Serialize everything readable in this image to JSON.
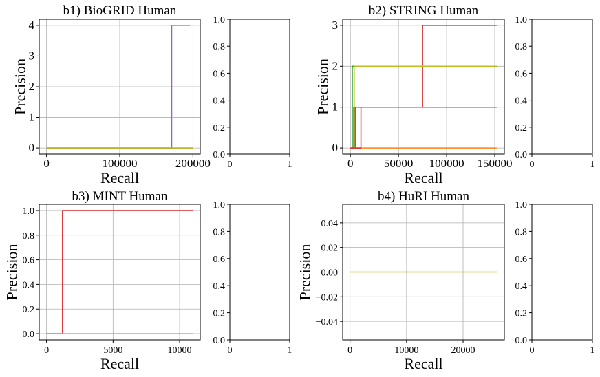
{
  "chart_data": [
    {
      "type": "line",
      "title": "b1) BioGRID Human",
      "xlabel": "Recall",
      "ylabel": "Precision",
      "xlim": [
        -10000,
        210000
      ],
      "ylim": [
        -0.2,
        4.2
      ],
      "xticks": [
        0,
        100000,
        200000
      ],
      "xtick_labels": [
        "0",
        "100000",
        "200000"
      ],
      "yticks": [
        0,
        1,
        2,
        3,
        4
      ],
      "ytick_labels": [
        "0",
        "1",
        "2",
        "3",
        "4"
      ],
      "grid": true,
      "series": [
        {
          "color": "#9467bd",
          "x": [
            0,
            171000,
            171000,
            196000
          ],
          "y": [
            0,
            0,
            4,
            4
          ]
        },
        {
          "color": "#8c564b",
          "x": [
            0,
            200000
          ],
          "y": [
            0,
            0
          ]
        },
        {
          "color": "#bcbd22",
          "x": [
            0,
            200000
          ],
          "y": [
            0,
            0
          ]
        }
      ]
    },
    {
      "type": "line",
      "title": "b2) STRING Human",
      "xlabel": "Recall",
      "ylabel": "Precision",
      "xlim": [
        -8000,
        160000
      ],
      "ylim": [
        -0.15,
        3.15
      ],
      "xticks": [
        0,
        50000,
        100000,
        150000
      ],
      "xtick_labels": [
        "0",
        "50000",
        "100000",
        "150000"
      ],
      "yticks": [
        0,
        1,
        2,
        3
      ],
      "ytick_labels": [
        "0",
        "1",
        "2",
        "3"
      ],
      "grid": true,
      "series": [
        {
          "color": "#ff7f0e",
          "x": [
            0,
            152000
          ],
          "y": [
            0,
            0
          ]
        },
        {
          "color": "#2ca02c",
          "x": [
            2000,
            2000,
            152000
          ],
          "y": [
            0,
            2,
            2
          ]
        },
        {
          "color": "#1f77b4",
          "x": [
            3500,
            3500,
            152000
          ],
          "y": [
            0,
            1,
            1
          ]
        },
        {
          "color": "#d62728",
          "x": [
            0,
            11000,
            11000,
            75000,
            75000,
            152000
          ],
          "y": [
            0,
            0,
            1,
            1,
            3,
            3
          ]
        },
        {
          "color": "#8c564b",
          "x": [
            5000,
            5000,
            152000
          ],
          "y": [
            0,
            1,
            1
          ]
        },
        {
          "color": "#bcbd22",
          "x": [
            4000,
            4000,
            152000
          ],
          "y": [
            0,
            2,
            2
          ]
        }
      ]
    },
    {
      "type": "line",
      "title": "b3) MINT Human",
      "xlabel": "Recall",
      "ylabel": "Precision",
      "xlim": [
        -550,
        11550
      ],
      "ylim": [
        -0.05,
        1.05
      ],
      "xticks": [
        0,
        5000,
        10000
      ],
      "xtick_labels": [
        "0",
        "5000",
        "10000"
      ],
      "yticks": [
        0,
        0.2,
        0.4,
        0.6,
        0.8,
        1.0
      ],
      "ytick_labels": [
        "0.0",
        "0.2",
        "0.4",
        "0.6",
        "0.8",
        "1.0"
      ],
      "grid": true,
      "series": [
        {
          "color": "#d62728",
          "x": [
            0,
            1200,
            1200,
            11000
          ],
          "y": [
            0,
            0,
            1,
            1
          ]
        },
        {
          "color": "#bcbd22",
          "x": [
            0,
            11000
          ],
          "y": [
            0,
            0
          ]
        }
      ]
    },
    {
      "type": "line",
      "title": "b4) HuRI Human",
      "xlabel": "Recall",
      "ylabel": "Precision",
      "xlim": [
        -1300,
        27300
      ],
      "ylim": [
        -0.055,
        0.055
      ],
      "xticks": [
        0,
        10000,
        20000
      ],
      "xtick_labels": [
        "0",
        "10000",
        "20000"
      ],
      "yticks": [
        -0.04,
        -0.02,
        0,
        0.02,
        0.04
      ],
      "ytick_labels": [
        "−0.04",
        "−0.02",
        "0.00",
        "0.02",
        "0.04"
      ],
      "grid": true,
      "series": [
        {
          "color": "#bcbd22",
          "x": [
            0,
            26000
          ],
          "y": [
            0,
            0
          ]
        }
      ]
    },
    {
      "type": "line",
      "title": "",
      "xlim": [
        0,
        1
      ],
      "ylim": [
        0,
        1
      ],
      "xticks": [
        0,
        1
      ],
      "xtick_labels": [
        "0",
        "1"
      ],
      "yticks": [
        0,
        0.2,
        0.4,
        0.6,
        0.8,
        1.0
      ],
      "ytick_labels": [
        "0.0",
        "0.2",
        "0.4",
        "0.6",
        "0.8",
        "1.0"
      ],
      "grid": false,
      "series": []
    },
    {
      "type": "line",
      "title": "",
      "xlim": [
        0,
        1
      ],
      "ylim": [
        0,
        1
      ],
      "xticks": [
        0,
        1
      ],
      "xtick_labels": [
        "0",
        "1"
      ],
      "yticks": [
        0,
        0.2,
        0.4,
        0.6,
        0.8,
        1.0
      ],
      "ytick_labels": [
        "0.0",
        "0.2",
        "0.4",
        "0.6",
        "0.8",
        "1.0"
      ],
      "grid": false,
      "series": []
    },
    {
      "type": "line",
      "title": "",
      "xlim": [
        0,
        1
      ],
      "ylim": [
        0,
        1
      ],
      "xticks": [
        0,
        1
      ],
      "xtick_labels": [
        "0",
        "1"
      ],
      "yticks": [
        0,
        0.2,
        0.4,
        0.6,
        0.8,
        1.0
      ],
      "ytick_labels": [
        "0.0",
        "0.2",
        "0.4",
        "0.6",
        "0.8",
        "1.0"
      ],
      "grid": false,
      "series": []
    },
    {
      "type": "line",
      "title": "",
      "xlim": [
        0,
        1
      ],
      "ylim": [
        0,
        1
      ],
      "xticks": [
        0,
        1
      ],
      "xtick_labels": [
        "0",
        "1"
      ],
      "yticks": [
        0,
        0.2,
        0.4,
        0.6,
        0.8,
        1.0
      ],
      "ytick_labels": [
        "0.0",
        "0.2",
        "0.4",
        "0.6",
        "0.8",
        "1.0"
      ],
      "grid": false,
      "series": []
    }
  ]
}
